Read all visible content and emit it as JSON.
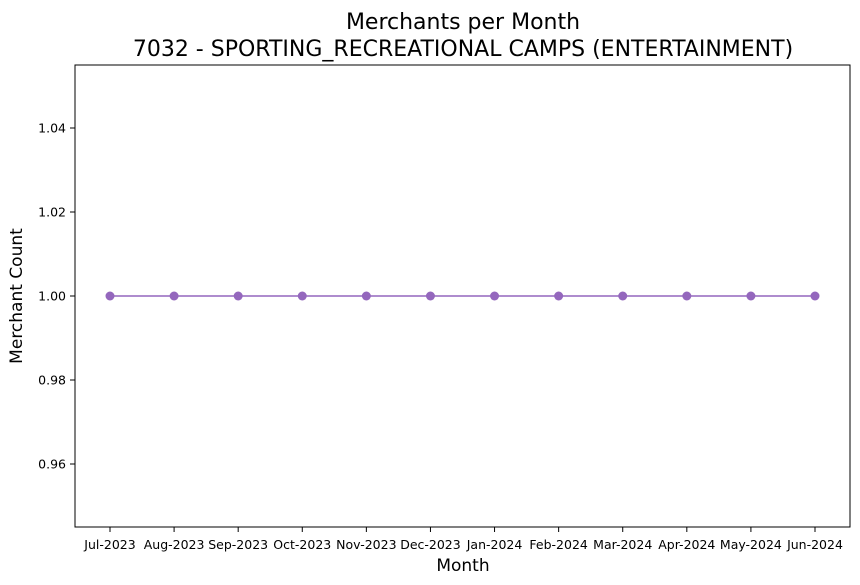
{
  "chart_data": {
    "type": "line",
    "title": "Merchants per Month",
    "subtitle": "7032 - SPORTING_RECREATIONAL CAMPS (ENTERTAINMENT)",
    "xlabel": "Month",
    "ylabel": "Merchant Count",
    "categories": [
      "Jul-2023",
      "Aug-2023",
      "Sep-2023",
      "Oct-2023",
      "Nov-2023",
      "Dec-2023",
      "Jan-2024",
      "Feb-2024",
      "Mar-2024",
      "Apr-2024",
      "May-2024",
      "Jun-2024"
    ],
    "series": [
      {
        "values": [
          1,
          1,
          1,
          1,
          1,
          1,
          1,
          1,
          1,
          1,
          1,
          1
        ],
        "color": "#9467bd"
      }
    ],
    "ylim": [
      0.945,
      1.055
    ],
    "yticks": [
      0.96,
      0.98,
      1.0,
      1.02,
      1.04
    ],
    "ytick_labels": [
      "0.96",
      "0.98",
      "1.00",
      "1.02",
      "1.04"
    ],
    "grid": false,
    "legend": "none"
  }
}
